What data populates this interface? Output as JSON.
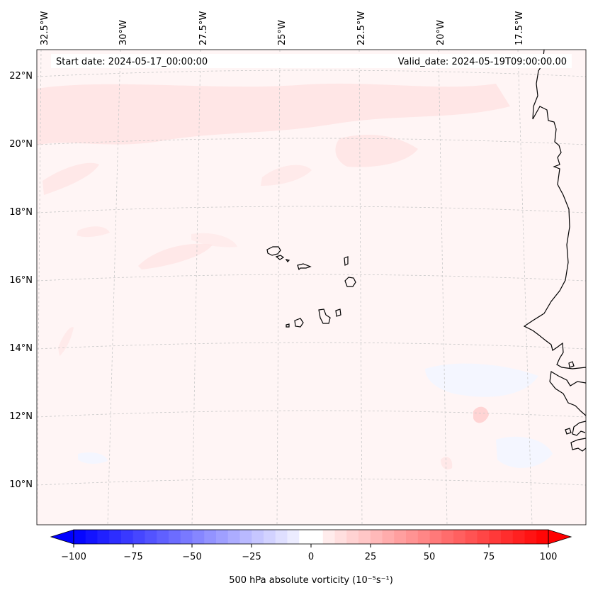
{
  "map": {
    "start_date": "Start date: 2024-05-17_00:00:00",
    "valid_date": "Valid_date: 2024-05-19T09:00:00.00",
    "lon_labels": [
      "32.5°W",
      "30°W",
      "27.5°W",
      "25°W",
      "22.5°W",
      "20°W",
      "17.5°W"
    ],
    "lat_labels": [
      "22°N",
      "20°N",
      "18°N",
      "16°N",
      "14°N",
      "12°N",
      "10°N"
    ],
    "colors": {
      "background_field": "#fff5f5",
      "weak_positive": "#ffe3e3",
      "weak_negative": "#f4f6ff",
      "coastline": "#000000",
      "gridline": "#c8c8c8"
    }
  },
  "colorbar": {
    "label": "500 hPa absolute vorticity (10⁻⁵s⁻¹)",
    "min": -100,
    "max": 100,
    "ticks": [
      "−100",
      "−75",
      "−50",
      "−25",
      "0",
      "25",
      "50",
      "75",
      "100"
    ],
    "low_color": "#0000ff",
    "mid_color": "#ffffff",
    "high_color": "#ff0000"
  }
}
